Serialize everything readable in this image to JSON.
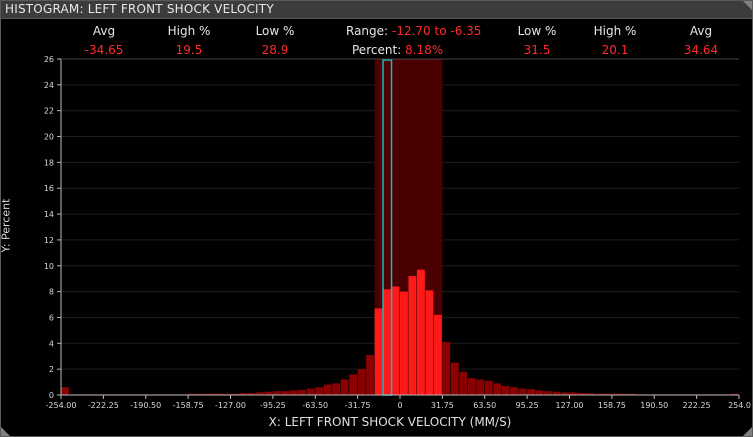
{
  "window": {
    "title": "HISTOGRAM: LEFT FRONT SHOCK VELOCITY"
  },
  "stats": {
    "left": [
      {
        "label": "Avg",
        "value": "-34.65"
      },
      {
        "label": "High %",
        "value": "19.5"
      },
      {
        "label": "Low %",
        "value": "28.9"
      }
    ],
    "center": {
      "range_label": "Range:",
      "range_value": "-12.70 to -6.35",
      "percent_label": "Percent:",
      "percent_value": "8.18%"
    },
    "right": [
      {
        "label": "Low %",
        "value": "31.5"
      },
      {
        "label": "High %",
        "value": "20.1"
      },
      {
        "label": "Avg",
        "value": "34.64"
      }
    ]
  },
  "chart_data": {
    "type": "bar",
    "ylabel": "Y: Percent",
    "xlabel": "X: LEFT FRONT SHOCK VELOCITY (MM/S)",
    "xlim": [
      -254.0,
      254.0
    ],
    "ylim": [
      0,
      26
    ],
    "bin_width": 6.35,
    "x_ticks": [
      "-254.00",
      "-222.25",
      "-190.50",
      "-158.75",
      "-127.00",
      "-95.25",
      "-63.50",
      "-31.75",
      "0",
      "31.75",
      "63.50",
      "95.25",
      "127.00",
      "158.75",
      "190.50",
      "222.25",
      "254.0"
    ],
    "y_ticks": [
      0,
      2,
      4,
      6,
      8,
      10,
      12,
      14,
      16,
      18,
      20,
      22,
      24,
      26
    ],
    "selected_range": [
      -12.7,
      -6.35
    ],
    "highlight_band": [
      -19.05,
      31.75
    ],
    "bins": [
      [
        -254.0,
        0.6
      ],
      [
        -247.65,
        0.05
      ],
      [
        -241.3,
        0.05
      ],
      [
        -234.95,
        0.05
      ],
      [
        -228.6,
        0.05
      ],
      [
        -222.25,
        0.05
      ],
      [
        -215.9,
        0.05
      ],
      [
        -209.55,
        0.05
      ],
      [
        -203.2,
        0.05
      ],
      [
        -196.85,
        0.05
      ],
      [
        -190.5,
        0.05
      ],
      [
        -184.15,
        0.05
      ],
      [
        -177.8,
        0.05
      ],
      [
        -171.45,
        0.05
      ],
      [
        -165.1,
        0.05
      ],
      [
        -158.75,
        0.1
      ],
      [
        -152.4,
        0.1
      ],
      [
        -146.05,
        0.1
      ],
      [
        -139.7,
        0.1
      ],
      [
        -133.35,
        0.1
      ],
      [
        -127.0,
        0.1
      ],
      [
        -120.65,
        0.15
      ],
      [
        -114.3,
        0.15
      ],
      [
        -107.95,
        0.2
      ],
      [
        -101.6,
        0.25
      ],
      [
        -95.25,
        0.3
      ],
      [
        -88.9,
        0.3
      ],
      [
        -82.55,
        0.35
      ],
      [
        -76.2,
        0.4
      ],
      [
        -69.85,
        0.5
      ],
      [
        -63.5,
        0.6
      ],
      [
        -57.15,
        0.8
      ],
      [
        -50.8,
        0.9
      ],
      [
        -44.45,
        1.2
      ],
      [
        -38.1,
        1.6
      ],
      [
        -31.75,
        2.0
      ],
      [
        -25.4,
        3.1
      ],
      [
        -19.05,
        6.7
      ],
      [
        -12.7,
        8.18
      ],
      [
        -6.35,
        8.4
      ],
      [
        0.0,
        8.0
      ],
      [
        6.35,
        9.2
      ],
      [
        12.7,
        9.7
      ],
      [
        19.05,
        8.1
      ],
      [
        25.4,
        6.2
      ],
      [
        31.75,
        4.1
      ],
      [
        38.1,
        2.5
      ],
      [
        44.45,
        1.8
      ],
      [
        50.8,
        1.3
      ],
      [
        57.15,
        1.2
      ],
      [
        63.5,
        1.1
      ],
      [
        69.85,
        0.9
      ],
      [
        76.2,
        0.7
      ],
      [
        82.55,
        0.6
      ],
      [
        88.9,
        0.5
      ],
      [
        95.25,
        0.45
      ],
      [
        101.6,
        0.35
      ],
      [
        107.95,
        0.3
      ],
      [
        114.3,
        0.25
      ],
      [
        120.65,
        0.2
      ],
      [
        127.0,
        0.2
      ],
      [
        133.35,
        0.15
      ],
      [
        139.7,
        0.15
      ],
      [
        146.05,
        0.1
      ],
      [
        152.4,
        0.1
      ],
      [
        158.75,
        0.1
      ],
      [
        165.1,
        0.1
      ],
      [
        171.45,
        0.1
      ],
      [
        177.8,
        0.05
      ],
      [
        184.15,
        0.05
      ],
      [
        190.5,
        0.05
      ],
      [
        196.85,
        0.05
      ],
      [
        203.2,
        0.05
      ],
      [
        209.55,
        0.05
      ],
      [
        215.9,
        0.05
      ],
      [
        222.25,
        0.05
      ],
      [
        228.6,
        0.05
      ],
      [
        234.95,
        0.05
      ],
      [
        241.3,
        0.05
      ],
      [
        247.65,
        0.1
      ]
    ],
    "colors": {
      "bar_dark": "#8b0000",
      "bar_bright": "#ff1a1a",
      "band": "#4a0000",
      "selection": "#19b7c8",
      "grid": "#1e1e1e",
      "axis": "#bbbbbb"
    }
  }
}
